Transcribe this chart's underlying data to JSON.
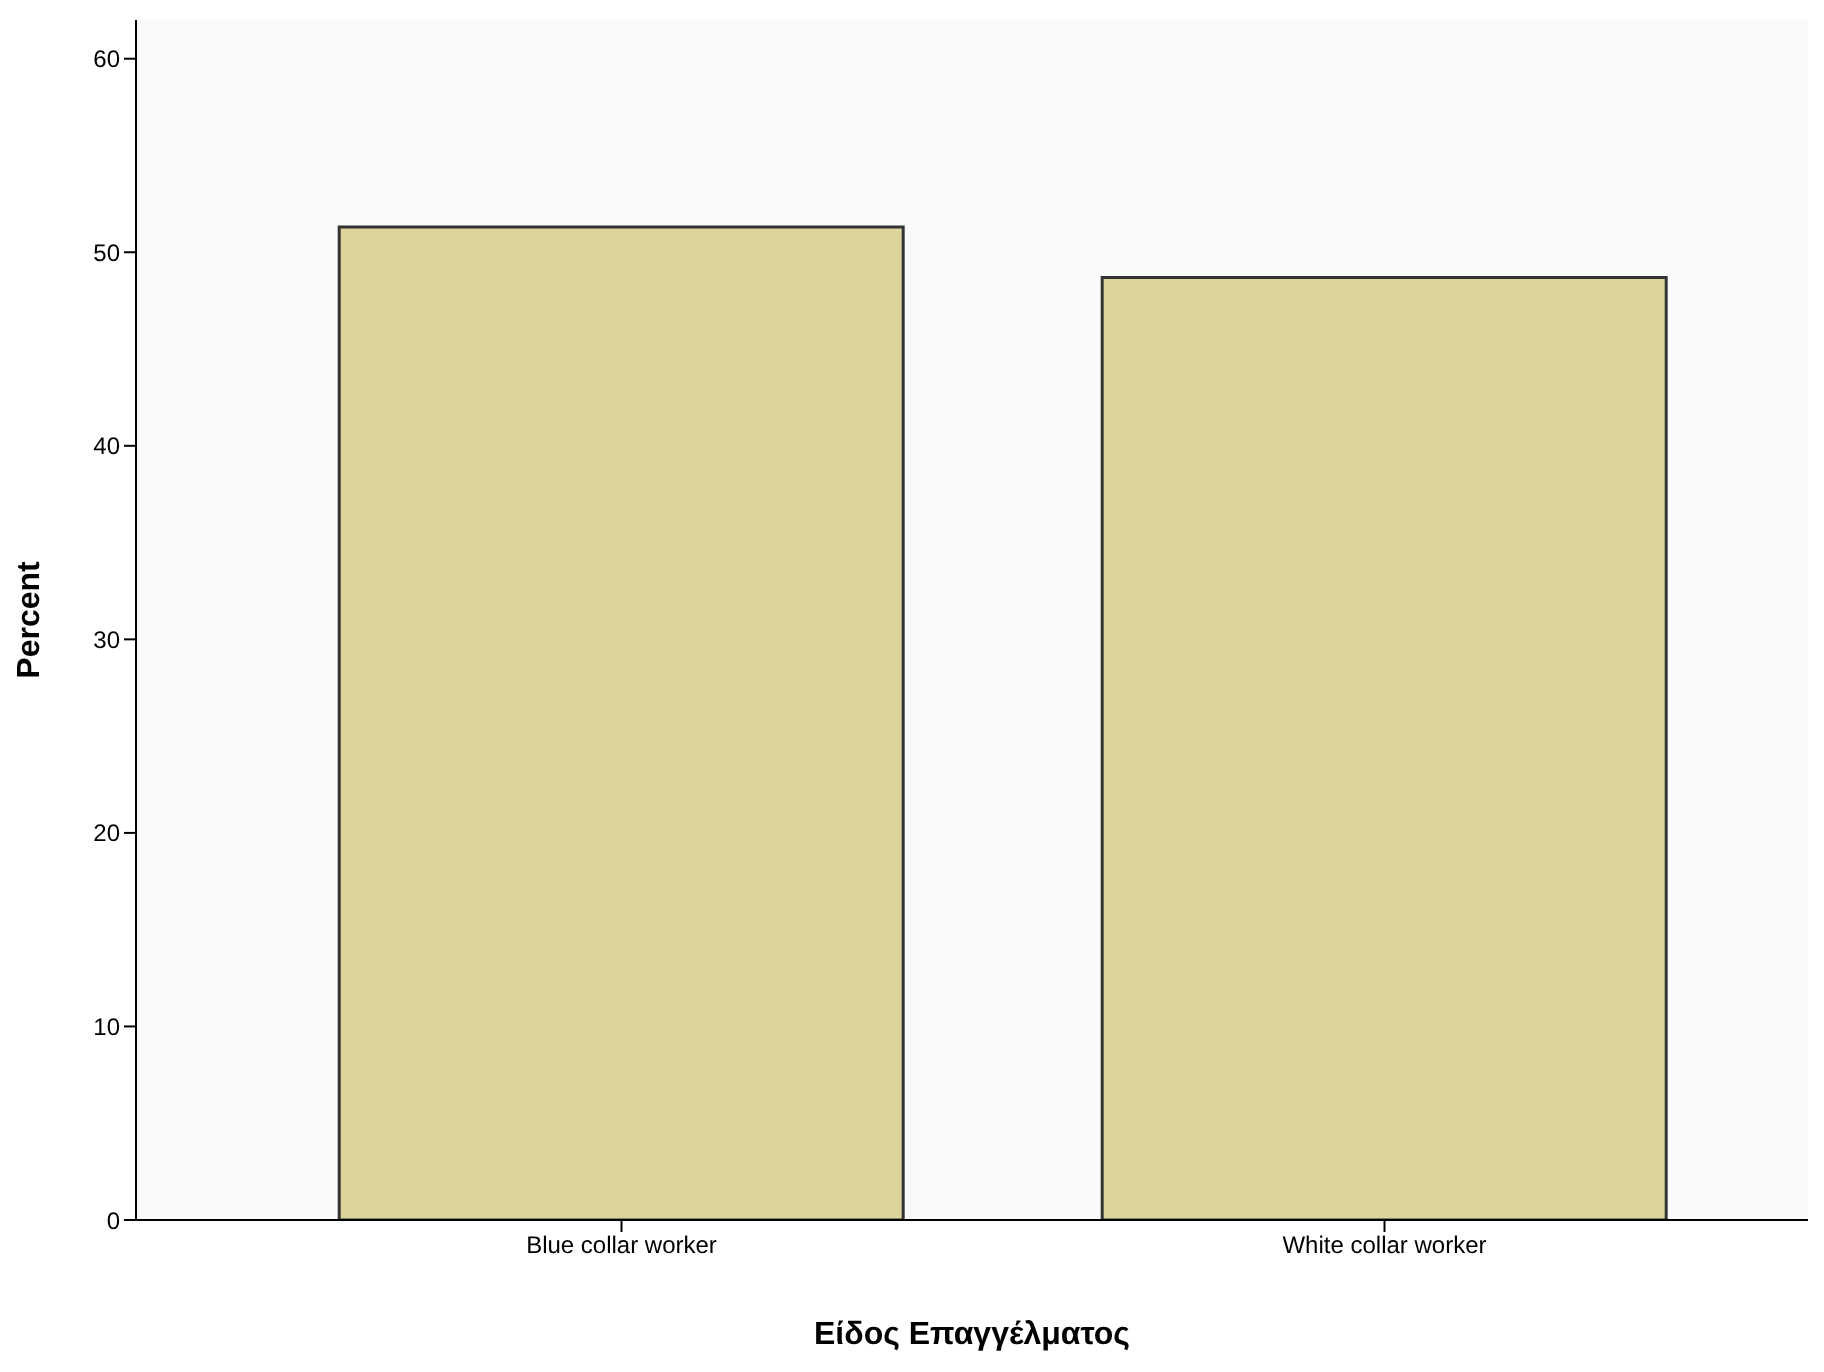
{
  "chart_data": {
    "type": "bar",
    "xlabel": "Είδος Επαγγέλματος",
    "ylabel": "Percent",
    "categories": [
      "Blue collar worker",
      "White collar worker"
    ],
    "values": [
      51.3,
      48.7
    ],
    "color": "#dcd59b",
    "ylim": [
      0,
      62
    ],
    "yticks": [
      0,
      10,
      20,
      30,
      40,
      50,
      60
    ],
    "grid": false
  }
}
